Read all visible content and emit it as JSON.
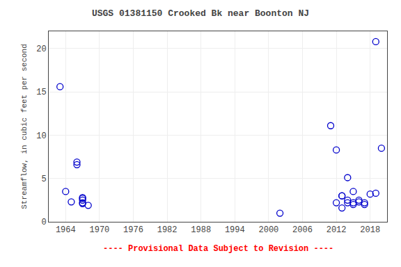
{
  "chart_data": {
    "type": "scatter",
    "title": "USGS 01381150 Crooked Bk near Boonton NJ",
    "y_label": "Streamflow, in cubic feet per second",
    "annotations": [
      {
        "text": "---- Provisional Data Subject to Revision ----",
        "color": "#ff0000"
      }
    ],
    "x": [
      1963,
      1964,
      1965,
      1966,
      1966,
      1967,
      1967,
      1967,
      1967,
      1967,
      1968,
      2002,
      2011,
      2012,
      2012,
      2013,
      2013,
      2013,
      2014,
      2014,
      2014,
      2015,
      2015,
      2015,
      2016,
      2016,
      2017,
      2017,
      2018,
      2019,
      2019,
      2020
    ],
    "values": [
      15.6,
      3.5,
      2.3,
      6.9,
      6.6,
      2.5,
      2.1,
      2.7,
      2.2,
      2.8,
      1.9,
      1.0,
      11.1,
      8.3,
      2.2,
      3.0,
      3.0,
      1.6,
      2.2,
      2.5,
      5.1,
      3.5,
      2.0,
      2.2,
      2.3,
      2.5,
      2.0,
      2.2,
      3.2,
      3.3,
      20.8,
      8.5
    ],
    "color": "#0000cc",
    "marker": "circle-open",
    "xlim": [
      1961,
      2021
    ],
    "ylim": [
      0,
      22
    ],
    "xticks": [
      1964,
      1970,
      1976,
      1982,
      1988,
      1994,
      2000,
      2006,
      2012,
      2018
    ],
    "yticks": [
      0,
      5,
      10,
      15,
      20
    ],
    "grid": true
  }
}
